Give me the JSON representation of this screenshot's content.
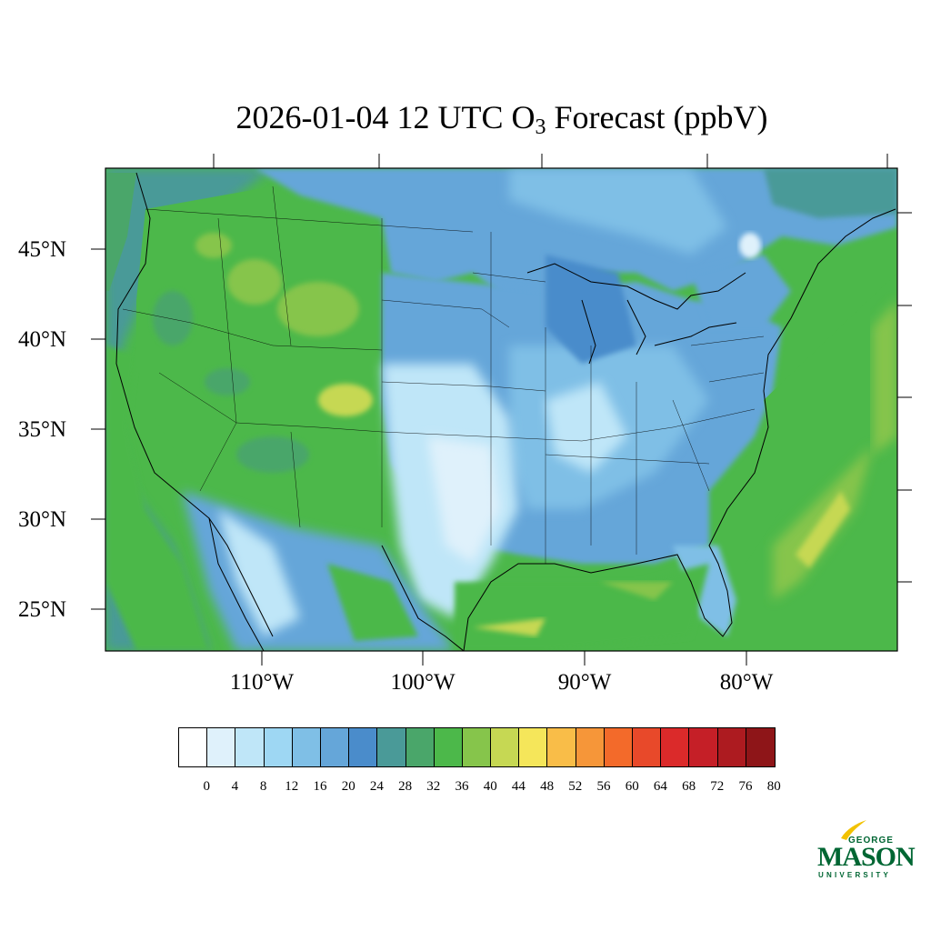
{
  "title": {
    "prefix": "2026-01-04 12 UTC O",
    "subscript": "3",
    "suffix": " Forecast (ppbV)"
  },
  "lat_labels": [
    "45°N",
    "40°N",
    "35°N",
    "30°N",
    "25°N"
  ],
  "lon_labels": [
    "110°W",
    "100°W",
    "90°W",
    "80°W"
  ],
  "colorbar": {
    "ticks": [
      "0",
      "4",
      "8",
      "12",
      "16",
      "20",
      "24",
      "28",
      "32",
      "36",
      "40",
      "44",
      "48",
      "52",
      "56",
      "60",
      "64",
      "68",
      "72",
      "76",
      "80"
    ],
    "colors": [
      "#ffffff",
      "#dff1fb",
      "#bfe6f8",
      "#9ed7f3",
      "#7fbfe6",
      "#65a6d9",
      "#4a8ccb",
      "#4a9a98",
      "#4aa66a",
      "#4cb84a",
      "#86c54b",
      "#c6d853",
      "#f5e65a",
      "#f9bd48",
      "#f69639",
      "#f36a2a",
      "#e8492a",
      "#db2a2a",
      "#c51f27",
      "#ad1b20",
      "#8e1518"
    ]
  },
  "map_colors": {
    "ocean_west": "#4a9a98",
    "pacific_green": "#4cb84a",
    "western_land": "#4cb84a",
    "plains_blue": "#65a6d9",
    "south_light": "#bfe6f8",
    "east_blue": "#7fbfe6",
    "atlantic": "#4cb84a",
    "gulf": "#4cb84a",
    "yellow_band": "#c6d853",
    "white_streak": "#dff1fb"
  },
  "logo": {
    "line1": "GEORGE",
    "line2": "MASON",
    "line3": "UNIVERSITY",
    "color": "#006633",
    "accent": "#f2c200"
  }
}
